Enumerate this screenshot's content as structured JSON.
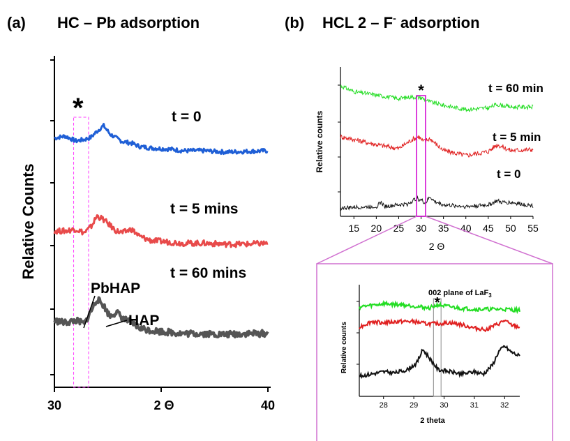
{
  "panels": {
    "a": {
      "letter": "(a)",
      "title": "HC – Pb adsorption"
    },
    "b": {
      "letter": "(b)",
      "title_main": "HCL 2 – F",
      "title_sup": "-",
      "title_tail": " adsorption"
    }
  },
  "chart_data": [
    {
      "id": "a",
      "type": "line",
      "title": "HC – Pb adsorption",
      "xlabel": "2 Θ",
      "ylabel": "Relative Counts",
      "xlim": [
        30,
        40
      ],
      "xticks": [
        30,
        35,
        40
      ],
      "xtick_labels": [
        "30",
        "",
        "40"
      ],
      "yticks_labeled": false,
      "series": [
        {
          "name": "t = 0",
          "color": "#1f5fd6",
          "stroke_width": 3,
          "x": [
            30,
            30.5,
            31,
            31.4,
            31.7,
            32,
            32.3,
            32.6,
            32.9,
            33.2,
            33.6,
            34,
            34.5,
            35,
            35.5,
            36,
            37,
            38,
            39,
            40
          ],
          "y": [
            0.52,
            0.55,
            0.48,
            0.5,
            0.53,
            0.62,
            0.7,
            0.58,
            0.52,
            0.47,
            0.45,
            0.4,
            0.38,
            0.37,
            0.36,
            0.34,
            0.34,
            0.32,
            0.33,
            0.34
          ]
        },
        {
          "name": "t = 5 mins",
          "color": "#e84a4a",
          "stroke_width": 3,
          "x": [
            30,
            30.5,
            31,
            31.4,
            31.7,
            32,
            32.3,
            32.6,
            32.9,
            33.2,
            33.6,
            34,
            34.5,
            35,
            35.5,
            36,
            37,
            38,
            39,
            40
          ],
          "y": [
            0.4,
            0.4,
            0.42,
            0.38,
            0.44,
            0.56,
            0.52,
            0.46,
            0.4,
            0.38,
            0.42,
            0.34,
            0.3,
            0.29,
            0.28,
            0.27,
            0.27,
            0.26,
            0.26,
            0.27
          ]
        },
        {
          "name": "t = 60 mins",
          "color": "#555555",
          "stroke_width": 4,
          "x": [
            30,
            30.5,
            31,
            31.4,
            31.7,
            32,
            32.3,
            32.6,
            32.9,
            33.2,
            33.6,
            34,
            34.5,
            35,
            35.5,
            36,
            37,
            38,
            39,
            40
          ],
          "y": [
            0.52,
            0.5,
            0.52,
            0.49,
            0.6,
            0.72,
            0.66,
            0.56,
            0.6,
            0.54,
            0.5,
            0.45,
            0.43,
            0.42,
            0.41,
            0.4,
            0.4,
            0.39,
            0.4,
            0.4
          ]
        }
      ],
      "annotations": [
        {
          "text": "*",
          "x": 31.2
        },
        {
          "text": "PbHAP",
          "x": 31.3
        },
        {
          "text": "HAP",
          "x": 32.0
        }
      ],
      "highlight_x_range": [
        30.9,
        31.6
      ]
    },
    {
      "id": "b-main",
      "type": "line",
      "xlabel": "2 Θ",
      "ylabel": "Relative counts",
      "xlim": [
        12,
        55
      ],
      "xticks": [
        15,
        20,
        25,
        30,
        35,
        40,
        45,
        50,
        55
      ],
      "series": [
        {
          "name": "t = 60 min",
          "color": "#22dd22",
          "stroke_width": 1,
          "x": [
            12,
            15,
            20,
            25,
            28,
            30,
            32,
            35,
            40,
            45,
            47,
            50,
            55
          ],
          "y": [
            0.55,
            0.48,
            0.44,
            0.4,
            0.42,
            0.41,
            0.36,
            0.32,
            0.27,
            0.29,
            0.33,
            0.3,
            0.3
          ]
        },
        {
          "name": "t = 5 min",
          "color": "#e02020",
          "stroke_width": 1,
          "x": [
            12,
            15,
            20,
            25,
            28,
            29.5,
            30.5,
            32,
            35,
            40,
            45,
            47,
            50,
            55
          ],
          "y": [
            0.38,
            0.35,
            0.3,
            0.26,
            0.35,
            0.38,
            0.33,
            0.36,
            0.24,
            0.19,
            0.23,
            0.3,
            0.24,
            0.25
          ]
        },
        {
          "name": "t = 0",
          "color": "#111111",
          "stroke_width": 1,
          "x": [
            12,
            15,
            20,
            21,
            22,
            25,
            27,
            29,
            30,
            31,
            32,
            33,
            35,
            40,
            45,
            47,
            48,
            50,
            55
          ],
          "y": [
            0.1,
            0.11,
            0.12,
            0.17,
            0.12,
            0.14,
            0.15,
            0.22,
            0.2,
            0.16,
            0.24,
            0.18,
            0.14,
            0.12,
            0.14,
            0.19,
            0.17,
            0.17,
            0.13
          ]
        }
      ],
      "annotations": [
        {
          "text": "*",
          "x": 30
        }
      ],
      "highlight_x_range": [
        29,
        31
      ]
    },
    {
      "id": "b-inset",
      "type": "line",
      "title": "002 plane of LaF3",
      "xlabel": "2 theta",
      "ylabel": "Relative counts",
      "xlim": [
        27.2,
        32.5
      ],
      "xticks": [
        28,
        29,
        30,
        31,
        32
      ],
      "series": [
        {
          "color": "#22dd22",
          "stroke_width": 2,
          "x": [
            27.2,
            28,
            28.6,
            29,
            29.5,
            29.8,
            30,
            30.5,
            31,
            31.5,
            32,
            32.5
          ],
          "y": [
            0.8,
            0.83,
            0.82,
            0.81,
            0.79,
            0.82,
            0.81,
            0.79,
            0.78,
            0.78,
            0.78,
            0.77
          ]
        },
        {
          "color": "#e02020",
          "stroke_width": 2,
          "x": [
            27.2,
            27.6,
            28,
            28.5,
            29,
            29.4,
            29.8,
            30.2,
            30.6,
            31,
            31.4,
            31.8,
            32,
            32.2,
            32.5
          ],
          "y": [
            0.62,
            0.67,
            0.66,
            0.67,
            0.67,
            0.65,
            0.65,
            0.66,
            0.64,
            0.61,
            0.6,
            0.65,
            0.68,
            0.64,
            0.62
          ]
        },
        {
          "color": "#111111",
          "stroke_width": 2,
          "x": [
            27.2,
            27.6,
            28,
            28.4,
            28.8,
            29.1,
            29.3,
            29.5,
            29.8,
            30.2,
            30.6,
            31,
            31.3,
            31.6,
            31.8,
            32,
            32.2,
            32.5
          ],
          "y": [
            0.18,
            0.2,
            0.22,
            0.21,
            0.24,
            0.3,
            0.42,
            0.35,
            0.24,
            0.22,
            0.2,
            0.22,
            0.2,
            0.28,
            0.4,
            0.45,
            0.4,
            0.36
          ]
        }
      ],
      "annotations": [
        {
          "text": "*",
          "x": 29.75
        }
      ],
      "highlight_x_range": [
        29.65,
        29.9
      ]
    }
  ]
}
